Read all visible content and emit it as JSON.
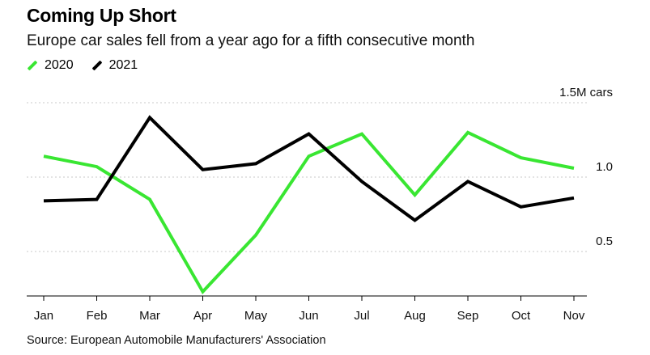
{
  "title": "Coming Up Short",
  "subtitle": "Europe car sales fell from a year ago for a fifth consecutive month",
  "source": "Source: European Automobile Manufacturers' Association",
  "chart_data": {
    "type": "line",
    "categories": [
      "Jan",
      "Feb",
      "Mar",
      "Apr",
      "May",
      "Jun",
      "Jul",
      "Aug",
      "Sep",
      "Oct",
      "Nov"
    ],
    "series": [
      {
        "name": "2020",
        "color": "#39e632",
        "values": [
          1.14,
          1.07,
          0.85,
          0.23,
          0.61,
          1.14,
          1.29,
          0.88,
          1.3,
          1.13,
          1.06
        ]
      },
      {
        "name": "2021",
        "color": "#000000",
        "values": [
          0.84,
          0.85,
          1.4,
          1.05,
          1.09,
          1.29,
          0.97,
          0.71,
          0.97,
          0.8,
          0.86
        ]
      }
    ],
    "y_ticks": [
      {
        "value": 1.5,
        "label": "1.5M cars"
      },
      {
        "value": 1.0,
        "label": "1.0"
      },
      {
        "value": 0.5,
        "label": "0.5"
      }
    ],
    "ylim": [
      0,
      1.5
    ],
    "grid": true,
    "legend_position": "top-left"
  }
}
